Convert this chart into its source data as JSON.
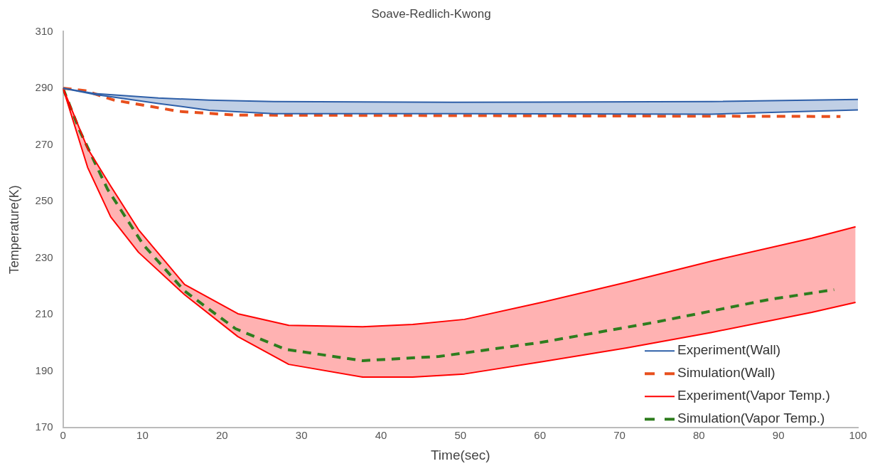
{
  "chart_data": {
    "type": "line",
    "title": "Soave-Redlich-Kwong",
    "xlabel": "Time(sec)",
    "ylabel": "Temperature(K)",
    "xlim": [
      0,
      100
    ],
    "xticks": [
      0,
      10,
      20,
      30,
      40,
      50,
      60,
      70,
      80,
      90,
      100
    ],
    "ylim": [
      170,
      310
    ],
    "yticks": [
      170,
      190,
      210,
      230,
      250,
      270,
      290,
      310
    ],
    "grid": false,
    "legend": "bottom right",
    "series": [
      {
        "name": "Experiment(Wall)",
        "color": "#2e5fa8",
        "line_style": "solid",
        "x": [
          0,
          4,
          12,
          18.4,
          26.5,
          49,
          81.6,
          100
        ],
        "values": [
          290,
          288.1,
          286.5,
          285.8,
          285.3,
          285,
          285.3,
          286
        ],
        "lower": [
          290,
          287.8,
          284.6,
          282.2,
          281,
          281,
          280.8,
          282.3
        ],
        "upper": [
          290,
          288.1,
          286.5,
          285.8,
          285.3,
          285,
          285.3,
          286
        ]
      },
      {
        "color": "#2e5fa8",
        "line_style": "solid",
        "x": [
          0,
          4,
          12,
          18.4,
          26.5,
          49,
          81.6,
          100
        ],
        "values": [
          290,
          287.8,
          284.6,
          282.2,
          281,
          281,
          280.8,
          282.3
        ]
      },
      {
        "name": "Simulation(Wall)",
        "color": "#e8501e",
        "line_style": "dashed",
        "x": [
          0,
          2.8,
          6.4,
          14.6,
          21.7,
          50,
          97.8
        ],
        "values": [
          290,
          289.1,
          285.8,
          281.8,
          280.5,
          280.3,
          280
        ]
      },
      {
        "name": "Experiment(Vapor Temp.)",
        "color": "#ff0000",
        "line_style": "solid",
        "x": [
          0,
          3.1,
          6,
          9.5,
          15.3,
          22,
          28.4,
          37.7,
          44,
          50.5,
          60.2,
          70.9,
          81.6,
          94.2,
          99.7
        ],
        "values": [
          290,
          268.7,
          255.4,
          240,
          220.6,
          210.3,
          206.2,
          205.7,
          206.5,
          208.3,
          214.3,
          221.4,
          228.9,
          237,
          241
        ],
        "lower": [
          290,
          262,
          244.5,
          232,
          217,
          202.2,
          192.4,
          187.9,
          187.9,
          189,
          193.3,
          198.2,
          203.7,
          210.8,
          214.3
        ],
        "upper": [
          290,
          268.7,
          255.4,
          240,
          220.6,
          210.3,
          206.2,
          205.7,
          206.5,
          208.3,
          214.3,
          221.4,
          228.9,
          237,
          241
        ]
      },
      {
        "color": "#ff0000",
        "line_style": "solid",
        "x": [
          0,
          3.1,
          6,
          9.5,
          15.3,
          22,
          28.4,
          37.7,
          44,
          50.5,
          60.2,
          70.9,
          81.6,
          94.2,
          99.7
        ],
        "values": [
          290,
          262,
          244.5,
          232,
          217,
          202.2,
          192.4,
          187.9,
          187.9,
          189,
          193.3,
          198.2,
          203.7,
          210.8,
          214.3
        ]
      },
      {
        "name": "Simulation(Vapor Temp.)",
        "color": "#2e7d1e",
        "line_style": "dashed",
        "x": [
          0,
          2.1,
          5.6,
          10.1,
          15.3,
          21.7,
          28,
          37.7,
          47.3,
          60.2,
          74.5,
          88.8,
          97
        ],
        "values": [
          290,
          275,
          254.3,
          234.7,
          218.3,
          205,
          197.7,
          193.7,
          195.2,
          200.2,
          207.3,
          215.3,
          218.8
        ]
      }
    ]
  }
}
